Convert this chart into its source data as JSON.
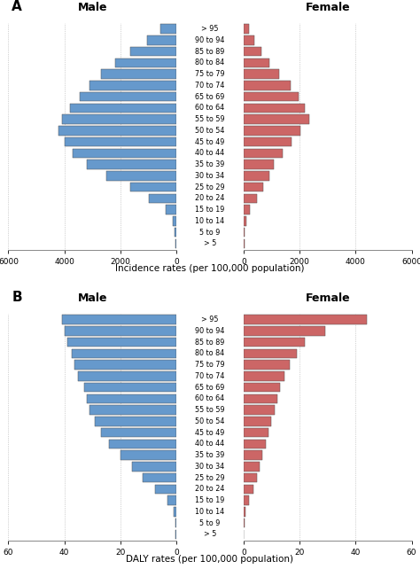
{
  "age_groups": [
    "> 5",
    "5 to 9",
    "10 to 14",
    "15 to 19",
    "20 to 24",
    "25 to 29",
    "30 to 34",
    "35 to 39",
    "40 to 44",
    "45 to 49",
    "50 to 54",
    "55 to 59",
    "60 to 64",
    "65 to 69",
    "70 to 74",
    "75 to 79",
    "80 to 84",
    "85 to 89",
    "90 to 94",
    "> 95"
  ],
  "incidence_male": [
    30,
    55,
    130,
    370,
    980,
    1650,
    2500,
    3200,
    3700,
    4000,
    4200,
    4100,
    3800,
    3450,
    3100,
    2700,
    2200,
    1650,
    1050,
    580
  ],
  "incidence_female": [
    20,
    45,
    95,
    210,
    490,
    710,
    920,
    1080,
    1400,
    1720,
    2020,
    2350,
    2200,
    1970,
    1690,
    1270,
    910,
    630,
    390,
    185
  ],
  "daly_male": [
    0.2,
    0.4,
    1.0,
    3.2,
    7.5,
    12,
    16,
    20,
    24,
    27,
    29,
    31,
    32,
    33,
    35,
    36.5,
    37.5,
    39,
    40,
    41
  ],
  "daly_female": [
    0.15,
    0.35,
    0.7,
    1.8,
    3.5,
    4.8,
    5.8,
    6.8,
    7.8,
    8.8,
    9.8,
    11,
    12,
    13,
    14.5,
    16.5,
    19,
    22,
    29,
    44
  ],
  "male_color": "#6699CC",
  "female_color": "#CC6666",
  "male_label": "Male",
  "female_label": "Female",
  "xlabel_a": "Incidence rates (per 100,000 population)",
  "xlabel_b": "DALY rates (per 100,000 population)",
  "xlim_a": 6000,
  "xlim_b": 60,
  "panel_a": "A",
  "panel_b": "B",
  "bg_color": "#ffffff"
}
